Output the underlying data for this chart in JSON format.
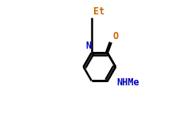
{
  "bg_color": "#ffffff",
  "bond_color": "#000000",
  "N_color": "#0000bb",
  "O_color": "#cc6600",
  "Et_color": "#cc6600",
  "NHMe_color": "#0000bb",
  "lw": 1.8,
  "fs": 8.5,
  "bl": 0.118,
  "N": [
    0.478,
    0.618
  ],
  "Et_up": [
    0.478,
    0.88
  ]
}
